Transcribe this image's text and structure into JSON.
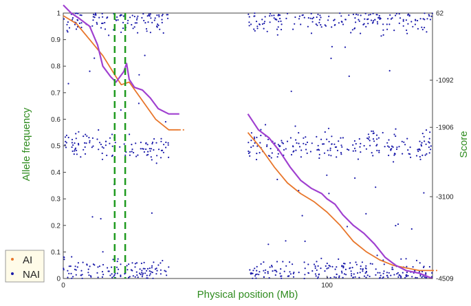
{
  "chart_data": {
    "type": "scatter",
    "title": "",
    "xlabel": "Physical position (Mb)",
    "ylabel_left": "Allele frequency",
    "ylabel_right": "Score",
    "xlim": [
      0,
      140
    ],
    "ylim_left": [
      0,
      1.0
    ],
    "ylim_right": [
      -4509,
      62
    ],
    "x_ticks": [
      0,
      100
    ],
    "y_ticks_left": [
      0,
      0.1,
      0.2,
      0.3,
      0.4,
      0.5,
      0.6,
      0.7,
      0.8,
      0.9,
      1
    ],
    "y_ticks_right": [
      62,
      -1092,
      -1906,
      -3100,
      -4509
    ],
    "legend": {
      "position": "bottom-left",
      "entries": [
        {
          "label": "AI",
          "color": "#e8762a",
          "marker": "dot"
        },
        {
          "label": "NAI",
          "color": "#1a1aaa",
          "marker": "dot"
        }
      ]
    },
    "marker_lines": {
      "x": [
        19.5,
        23.5
      ],
      "color": "#1e9a1e",
      "style": "dashed"
    },
    "scatter_points": {
      "series": "NAI",
      "color": "#1a1aaa",
      "position_segments": [
        [
          0,
          40
        ],
        [
          70,
          140
        ]
      ],
      "frequency_bands": [
        0.0,
        0.5,
        1.0
      ],
      "note_on_density": "approx"
    },
    "series": [
      {
        "name": "AI",
        "color": "#e8762a",
        "x": [
          0,
          5,
          10,
          15,
          20,
          22,
          25,
          30,
          35,
          40,
          44,
          70,
          75,
          80,
          85,
          90,
          95,
          100,
          105,
          110,
          115,
          120,
          125,
          130,
          135,
          140
        ],
        "y": [
          0.99,
          0.96,
          0.9,
          0.84,
          0.76,
          0.73,
          0.74,
          0.67,
          0.6,
          0.56,
          0.56,
          0.55,
          0.49,
          0.42,
          0.36,
          0.32,
          0.29,
          0.25,
          0.2,
          0.14,
          0.1,
          0.07,
          0.05,
          0.04,
          0.03,
          0.03
        ]
      },
      {
        "name": "NAI",
        "color": "#a040d0",
        "x": [
          0,
          3,
          6,
          10,
          13,
          15,
          18,
          20,
          23,
          24,
          25,
          27,
          30,
          33,
          36,
          40,
          44,
          70,
          72,
          74,
          78,
          82,
          86,
          90,
          94,
          98,
          100,
          103,
          106,
          110,
          114,
          118,
          122,
          126,
          130,
          135,
          140
        ],
        "y": [
          1.03,
          1.0,
          0.98,
          0.95,
          0.88,
          0.8,
          0.76,
          0.74,
          0.78,
          0.81,
          0.75,
          0.72,
          0.71,
          0.68,
          0.64,
          0.62,
          0.62,
          0.62,
          0.59,
          0.56,
          0.53,
          0.48,
          0.42,
          0.37,
          0.34,
          0.32,
          0.3,
          0.28,
          0.24,
          0.2,
          0.17,
          0.13,
          0.08,
          0.05,
          0.03,
          0.02,
          0.0
        ]
      }
    ]
  }
}
